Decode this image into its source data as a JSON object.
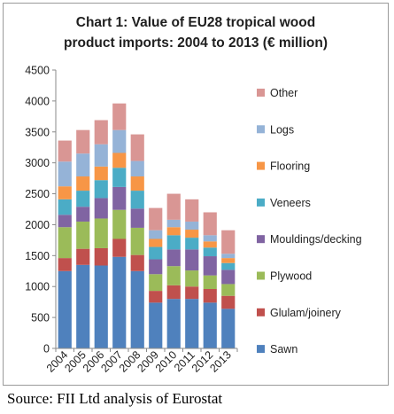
{
  "chart_data": {
    "type": "bar",
    "stacked": true,
    "title_lines": [
      "Chart 1: Value of EU28 tropical wood",
      "product imports: 2004 to 2013 (€ million)"
    ],
    "xlabel": "",
    "ylabel": "",
    "categories": [
      "2004",
      "2005",
      "2006",
      "2007",
      "2008",
      "2009",
      "2010",
      "2011",
      "2012",
      "2013"
    ],
    "ylim": [
      0,
      4500
    ],
    "yticks": [
      "0",
      "500",
      "1000",
      "1500",
      "2000",
      "2500",
      "3000",
      "3500",
      "4000",
      "4500"
    ],
    "grid": false,
    "legend_placement": "right",
    "series": [
      {
        "name": "Sawn",
        "color": "#4f81bd",
        "values": [
          1250,
          1350,
          1340,
          1480,
          1250,
          740,
          800,
          800,
          740,
          640
        ]
      },
      {
        "name": "Glulam/joinery",
        "color": "#c0504d",
        "values": [
          210,
          260,
          280,
          290,
          260,
          190,
          220,
          200,
          220,
          210
        ]
      },
      {
        "name": "Plywood",
        "color": "#9bbb59",
        "values": [
          500,
          440,
          480,
          470,
          440,
          270,
          310,
          260,
          220,
          190
        ]
      },
      {
        "name": "Mouldings/decking",
        "color": "#8064a2",
        "values": [
          200,
          240,
          330,
          370,
          310,
          240,
          270,
          340,
          310,
          230
        ]
      },
      {
        "name": "Veneers",
        "color": "#4bacc6",
        "values": [
          250,
          260,
          290,
          310,
          290,
          200,
          230,
          190,
          140,
          110
        ]
      },
      {
        "name": "Flooring",
        "color": "#f79646",
        "values": [
          210,
          230,
          220,
          240,
          230,
          130,
          130,
          130,
          100,
          80
        ]
      },
      {
        "name": "Logs",
        "color": "#95b3d7",
        "values": [
          400,
          370,
          360,
          370,
          250,
          140,
          120,
          130,
          100,
          70
        ]
      },
      {
        "name": "Other",
        "color": "#d99694",
        "values": [
          340,
          380,
          390,
          430,
          430,
          360,
          420,
          360,
          370,
          380
        ]
      }
    ]
  },
  "source": "Source: FII Ltd analysis of Eurostat"
}
